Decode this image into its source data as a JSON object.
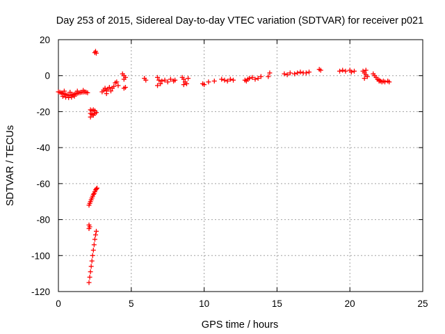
{
  "chart_data": {
    "type": "scatter",
    "title": "Day 253 of 2015, Sidereal Day-to-day VTEC variation (SDTVAR) for receiver p021",
    "xlabel": "GPS time / hours",
    "ylabel": "SDTVAR / TECUs",
    "xlim": [
      0,
      25
    ],
    "ylim": [
      -120,
      20
    ],
    "xticks": [
      0,
      5,
      10,
      15,
      20,
      25
    ],
    "xtick_labels": [
      "0",
      "5",
      "10",
      "15",
      "20",
      "25"
    ],
    "yticks": [
      -120,
      -100,
      -80,
      -60,
      -40,
      -20,
      0,
      20
    ],
    "ytick_labels": [
      "-120",
      "-100",
      "-80",
      "-60",
      "-40",
      "-20",
      "0",
      "20"
    ],
    "grid": true,
    "marker": "plus",
    "color": "#ff0000",
    "series": [
      {
        "name": "SDTVAR",
        "points": [
          [
            0.0,
            -9.0
          ],
          [
            0.1,
            -9.2
          ],
          [
            0.2,
            -9.6
          ],
          [
            0.3,
            -10.0
          ],
          [
            0.4,
            -10.2
          ],
          [
            0.5,
            -10.5
          ],
          [
            0.6,
            -10.8
          ],
          [
            0.7,
            -11.0
          ],
          [
            0.8,
            -11.0
          ],
          [
            0.9,
            -10.8
          ],
          [
            1.0,
            -10.6
          ],
          [
            1.1,
            -10.3
          ],
          [
            1.2,
            -10.0
          ],
          [
            1.3,
            -9.8
          ],
          [
            1.4,
            -9.6
          ],
          [
            1.5,
            -9.4
          ],
          [
            1.6,
            -9.2
          ],
          [
            1.7,
            -9.1
          ],
          [
            1.8,
            -9.0
          ],
          [
            1.9,
            -9.2
          ],
          [
            2.0,
            -9.5
          ],
          [
            0.3,
            -11.5
          ],
          [
            0.5,
            -12.0
          ],
          [
            0.7,
            -12.2
          ],
          [
            0.9,
            -12.0
          ],
          [
            1.1,
            -11.4
          ],
          [
            0.4,
            -8.6
          ],
          [
            0.8,
            -9.2
          ],
          [
            1.3,
            -8.6
          ],
          [
            1.7,
            -8.2
          ],
          [
            2.2,
            -19.0
          ],
          [
            2.3,
            -19.5
          ],
          [
            2.4,
            -19.0
          ],
          [
            2.5,
            -19.5
          ],
          [
            2.2,
            -21.0
          ],
          [
            2.3,
            -21.5
          ],
          [
            2.4,
            -22.0
          ],
          [
            2.5,
            -21.0
          ],
          [
            2.6,
            -20.5
          ],
          [
            2.2,
            -23.0
          ],
          [
            2.1,
            -72.0
          ],
          [
            2.15,
            -71.0
          ],
          [
            2.2,
            -70.0
          ],
          [
            2.25,
            -69.0
          ],
          [
            2.3,
            -68.0
          ],
          [
            2.35,
            -67.0
          ],
          [
            2.4,
            -66.0
          ],
          [
            2.45,
            -65.5
          ],
          [
            2.5,
            -64.5
          ],
          [
            2.55,
            -63.5
          ],
          [
            2.6,
            -63.0
          ],
          [
            2.65,
            -62.5
          ],
          [
            2.1,
            -83.0
          ],
          [
            2.15,
            -84.0
          ],
          [
            2.1,
            -85.0
          ],
          [
            2.1,
            -115.0
          ],
          [
            2.15,
            -112.0
          ],
          [
            2.2,
            -109.0
          ],
          [
            2.25,
            -106.0
          ],
          [
            2.3,
            -103.0
          ],
          [
            2.35,
            -100.0
          ],
          [
            2.4,
            -97.0
          ],
          [
            2.45,
            -94.0
          ],
          [
            2.5,
            -91.0
          ],
          [
            2.55,
            -88.5
          ],
          [
            2.6,
            -86.5
          ],
          [
            2.6,
            12.5
          ],
          [
            2.55,
            13.5
          ],
          [
            2.5,
            12.8
          ],
          [
            3.0,
            -9.0
          ],
          [
            3.1,
            -8.0
          ],
          [
            3.2,
            -7.0
          ],
          [
            3.3,
            -8.5
          ],
          [
            3.4,
            -7.5
          ],
          [
            3.5,
            -6.5
          ],
          [
            3.6,
            -8.5
          ],
          [
            3.7,
            -7.0
          ],
          [
            3.8,
            -6.0
          ],
          [
            3.9,
            -4.0
          ],
          [
            4.0,
            -3.5
          ],
          [
            4.1,
            -5.5
          ],
          [
            3.3,
            -10.0
          ],
          [
            4.5,
            0.0
          ],
          [
            4.6,
            -1.0
          ],
          [
            4.5,
            -2.0
          ],
          [
            4.6,
            -6.5
          ],
          [
            4.5,
            -7.0
          ],
          [
            4.4,
            1.0
          ],
          [
            5.9,
            -1.5
          ],
          [
            6.0,
            -2.5
          ],
          [
            6.8,
            -1.0
          ],
          [
            6.9,
            -2.5
          ],
          [
            7.0,
            -4.5
          ],
          [
            6.8,
            -5.5
          ],
          [
            7.1,
            -3.0
          ],
          [
            7.3,
            -2.5
          ],
          [
            7.5,
            -3.5
          ],
          [
            7.7,
            -2.0
          ],
          [
            7.9,
            -3.0
          ],
          [
            8.0,
            -2.5
          ],
          [
            8.5,
            -1.0
          ],
          [
            8.6,
            -2.0
          ],
          [
            8.7,
            -3.5
          ],
          [
            8.8,
            -4.5
          ],
          [
            8.9,
            -1.5
          ],
          [
            8.6,
            -5.0
          ],
          [
            9.9,
            -4.5
          ],
          [
            10.0,
            -5.0
          ],
          [
            10.3,
            -3.5
          ],
          [
            10.7,
            -3.0
          ],
          [
            11.2,
            -2.0
          ],
          [
            11.4,
            -2.5
          ],
          [
            11.6,
            -3.0
          ],
          [
            11.8,
            -2.0
          ],
          [
            12.0,
            -2.5
          ],
          [
            12.8,
            -2.5
          ],
          [
            12.9,
            -3.0
          ],
          [
            13.0,
            -2.0
          ],
          [
            13.1,
            -1.5
          ],
          [
            13.3,
            -1.0
          ],
          [
            13.5,
            -2.0
          ],
          [
            13.7,
            -1.5
          ],
          [
            13.9,
            -0.5
          ],
          [
            14.4,
            -0.5
          ],
          [
            14.5,
            1.5
          ],
          [
            15.5,
            1.0
          ],
          [
            15.7,
            0.5
          ],
          [
            15.9,
            1.5
          ],
          [
            16.2,
            1.0
          ],
          [
            16.4,
            1.5
          ],
          [
            16.6,
            2.0
          ],
          [
            16.8,
            1.5
          ],
          [
            17.0,
            1.5
          ],
          [
            17.2,
            2.0
          ],
          [
            17.9,
            3.5
          ],
          [
            18.0,
            3.0
          ],
          [
            19.3,
            2.5
          ],
          [
            19.5,
            3.0
          ],
          [
            19.7,
            2.5
          ],
          [
            20.0,
            3.0
          ],
          [
            20.1,
            2.0
          ],
          [
            20.3,
            2.5
          ],
          [
            20.9,
            2.5
          ],
          [
            21.0,
            1.5
          ],
          [
            21.1,
            0.5
          ],
          [
            21.2,
            -0.5
          ],
          [
            21.0,
            -1.5
          ],
          [
            21.1,
            3.0
          ],
          [
            21.6,
            1.0
          ],
          [
            21.7,
            0.0
          ],
          [
            21.8,
            -1.0
          ],
          [
            21.9,
            -2.0
          ],
          [
            22.0,
            -2.5
          ],
          [
            22.1,
            -3.0
          ],
          [
            22.2,
            -3.5
          ],
          [
            22.3,
            -3.0
          ],
          [
            22.4,
            -3.5
          ],
          [
            22.6,
            -3.0
          ],
          [
            22.7,
            -3.5
          ],
          [
            22.0,
            -3.0
          ]
        ]
      }
    ]
  }
}
